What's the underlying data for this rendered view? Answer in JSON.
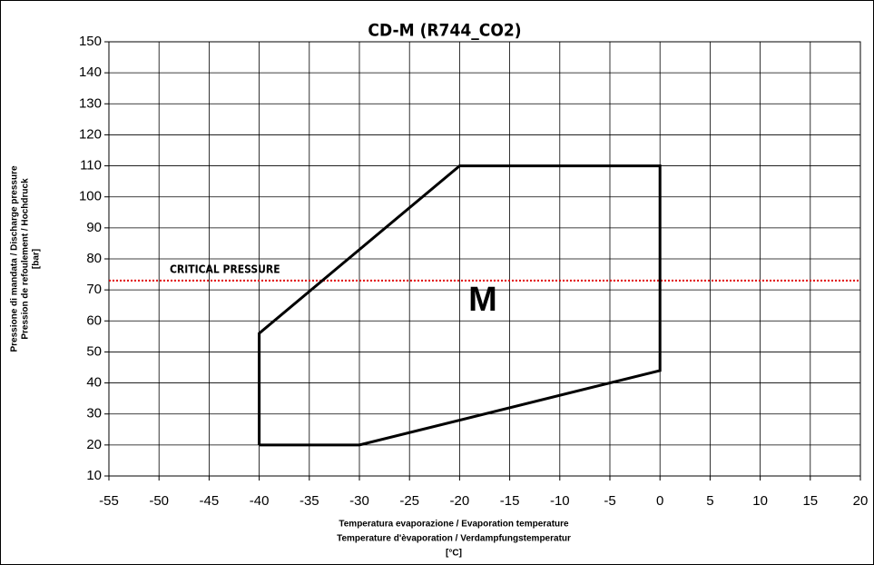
{
  "chart_data": {
    "type": "line",
    "title": "CD-M (R744_CO2)",
    "y_label": [
      "Pressione di mandata / Discharge pressure",
      "Pression de refoulement / Hochdruck",
      "[bar]"
    ],
    "x_label": [
      "Temperatura evaporazione /  Evaporation temperature",
      "Temperature d'èvaporation / Verdampfungstemperatur",
      "[°C]"
    ],
    "x": [
      -40,
      -30,
      0,
      0,
      -20,
      -40,
      -40
    ],
    "values": [
      20,
      20,
      44,
      110,
      110,
      56,
      20
    ],
    "color": "#000000",
    "reference_line": {
      "value": 73,
      "label": "CRITICAL PRESSURE",
      "color": "#e00000"
    },
    "region_label": "M",
    "xlim": [
      -55,
      20
    ],
    "xticks": [
      -55,
      -50,
      -45,
      -40,
      -35,
      -30,
      -25,
      -20,
      -15,
      -10,
      -5,
      0,
      5,
      10,
      15,
      20
    ],
    "ylim": [
      10,
      150
    ],
    "yticks": [
      10,
      20,
      30,
      40,
      50,
      60,
      70,
      80,
      90,
      100,
      110,
      120,
      130,
      140,
      150
    ],
    "grid": true
  }
}
